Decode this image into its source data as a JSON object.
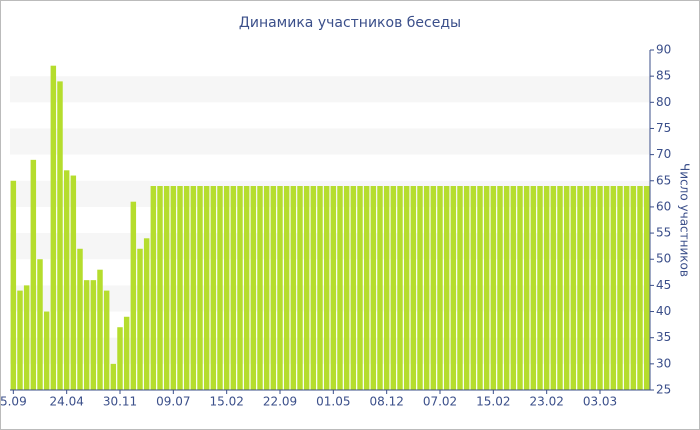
{
  "chart_data": {
    "type": "bar",
    "title": "Динамика участников беседы",
    "y_axis_label": "Число участников",
    "categories": [
      "5.09",
      null,
      null,
      null,
      null,
      null,
      null,
      null,
      "24.04",
      null,
      null,
      null,
      null,
      null,
      null,
      null,
      "30.11",
      null,
      null,
      null,
      null,
      null,
      null,
      null,
      "09.07",
      null,
      null,
      null,
      null,
      null,
      null,
      null,
      "15.02",
      null,
      null,
      null,
      null,
      null,
      null,
      null,
      "22.09",
      null,
      null,
      null,
      null,
      null,
      null,
      null,
      "01.05",
      null,
      null,
      null,
      null,
      null,
      null,
      null,
      "08.12",
      null,
      null,
      null,
      null,
      null,
      null,
      null,
      "07.02",
      null,
      null,
      null,
      null,
      null,
      null,
      null,
      "15.02",
      null,
      null,
      null,
      null,
      null,
      null,
      null,
      "23.02",
      null,
      null,
      null,
      null,
      null,
      null,
      null,
      "03.03",
      null,
      null,
      null,
      null,
      null,
      null,
      null
    ],
    "values": [
      65,
      44,
      45,
      69,
      50,
      40,
      87,
      84,
      67,
      66,
      52,
      46,
      46,
      48,
      44,
      30,
      37,
      39,
      61,
      52,
      54,
      64,
      64,
      64,
      64,
      64,
      64,
      64,
      64,
      64,
      64,
      64,
      64,
      64,
      64,
      64,
      64,
      64,
      64,
      64,
      64,
      64,
      64,
      64,
      64,
      64,
      64,
      64,
      64,
      64,
      64,
      64,
      64,
      64,
      64,
      64,
      64,
      64,
      64,
      64,
      64,
      64,
      64,
      64,
      64,
      64,
      64,
      64,
      64,
      64,
      64,
      64,
      64,
      64,
      64,
      64,
      64,
      64,
      64,
      64,
      64,
      64,
      64,
      64,
      64,
      64,
      64,
      64,
      64,
      64,
      64,
      64,
      64,
      64,
      64,
      64
    ],
    "color": "#b5dd2d",
    "ylim": [
      25,
      90
    ],
    "yticks": [
      25,
      30,
      35,
      40,
      45,
      50,
      55,
      60,
      65,
      70,
      75,
      80,
      85,
      90
    ],
    "y_axis_side": "right",
    "grid": true
  }
}
